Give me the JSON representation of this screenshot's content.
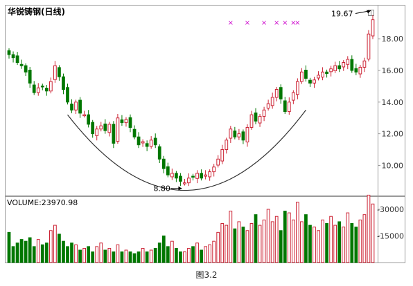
{
  "figure": {
    "caption": "图3.2"
  },
  "chart_data": [
    {
      "type": "candlestick",
      "title": "华锐铸钢(日线)",
      "yticks": [
        10.0,
        12.0,
        14.0,
        16.0,
        18.0
      ],
      "ylim": [
        8.1,
        20.1
      ],
      "grid": false,
      "pattern": "rounding-bottom (cup) curve drawn under the price lows",
      "annotations": [
        {
          "text": "8.80",
          "marks": "low",
          "index": 42
        },
        {
          "text": "19.67",
          "marks": "high",
          "index": 87
        }
      ],
      "markers": {
        "symbol": "×",
        "color": "#cc00cc",
        "indices": [
          53,
          57,
          61,
          64,
          66,
          68,
          69
        ]
      },
      "colors": {
        "up": "#cc2233",
        "down": "#007700",
        "frame": "#999999"
      },
      "close": [
        17.0,
        16.8,
        16.5,
        16.3,
        15.9,
        15.2,
        14.6,
        14.9,
        15.0,
        14.7,
        15.3,
        16.3,
        15.6,
        14.8,
        14.0,
        13.5,
        14.0,
        13.3,
        13.2,
        12.6,
        12.0,
        12.3,
        12.5,
        12.2,
        12.6,
        11.4,
        13.0,
        12.7,
        12.9,
        12.4,
        11.8,
        11.3,
        11.5,
        11.2,
        11.6,
        11.3,
        10.4,
        9.8,
        9.4,
        9.5,
        9.2,
        9.0,
        8.9,
        9.2,
        9.3,
        9.5,
        9.2,
        9.4,
        9.6,
        9.9,
        10.4,
        11.0,
        11.6,
        12.3,
        11.8,
        12.0,
        11.6,
        12.4,
        13.2,
        12.8,
        13.1,
        13.5,
        13.9,
        14.3,
        14.8,
        14.2,
        13.4,
        14.0,
        14.6,
        15.3,
        15.9,
        15.5,
        15.2,
        15.4,
        15.7,
        15.9,
        15.8,
        16.1,
        16.3,
        16.1,
        16.5,
        16.7,
        16.0,
        15.9,
        16.2,
        16.6,
        18.3,
        19.2
      ],
      "series": [
        {
          "name": "VOLUME",
          "label": "VOLUME:23970.98",
          "type": "bar",
          "yticks": [
            15000,
            30000
          ],
          "ylim": [
            0,
            37000
          ],
          "values": [
            17000,
            9000,
            11000,
            13000,
            12000,
            14000,
            9000,
            13000,
            10000,
            11000,
            18000,
            21000,
            16000,
            12000,
            9000,
            11000,
            10000,
            7000,
            8000,
            9000,
            6000,
            9000,
            11000,
            7000,
            8000,
            6000,
            10000,
            6000,
            7000,
            6000,
            5000,
            6000,
            8000,
            6000,
            7000,
            8000,
            11000,
            15000,
            9000,
            12000,
            8000,
            6000,
            6000,
            8000,
            9000,
            11000,
            7000,
            9000,
            10000,
            12000,
            17000,
            22000,
            21000,
            29000,
            19000,
            23000,
            20000,
            18000,
            22000,
            27000,
            21000,
            24000,
            30000,
            23000,
            26000,
            18000,
            29000,
            28000,
            24000,
            34000,
            23000,
            27000,
            21000,
            20000,
            18000,
            24000,
            22000,
            26000,
            21000,
            23000,
            20000,
            28000,
            22000,
            20000,
            24000,
            27000,
            38000,
            33000
          ]
        }
      ]
    }
  ]
}
